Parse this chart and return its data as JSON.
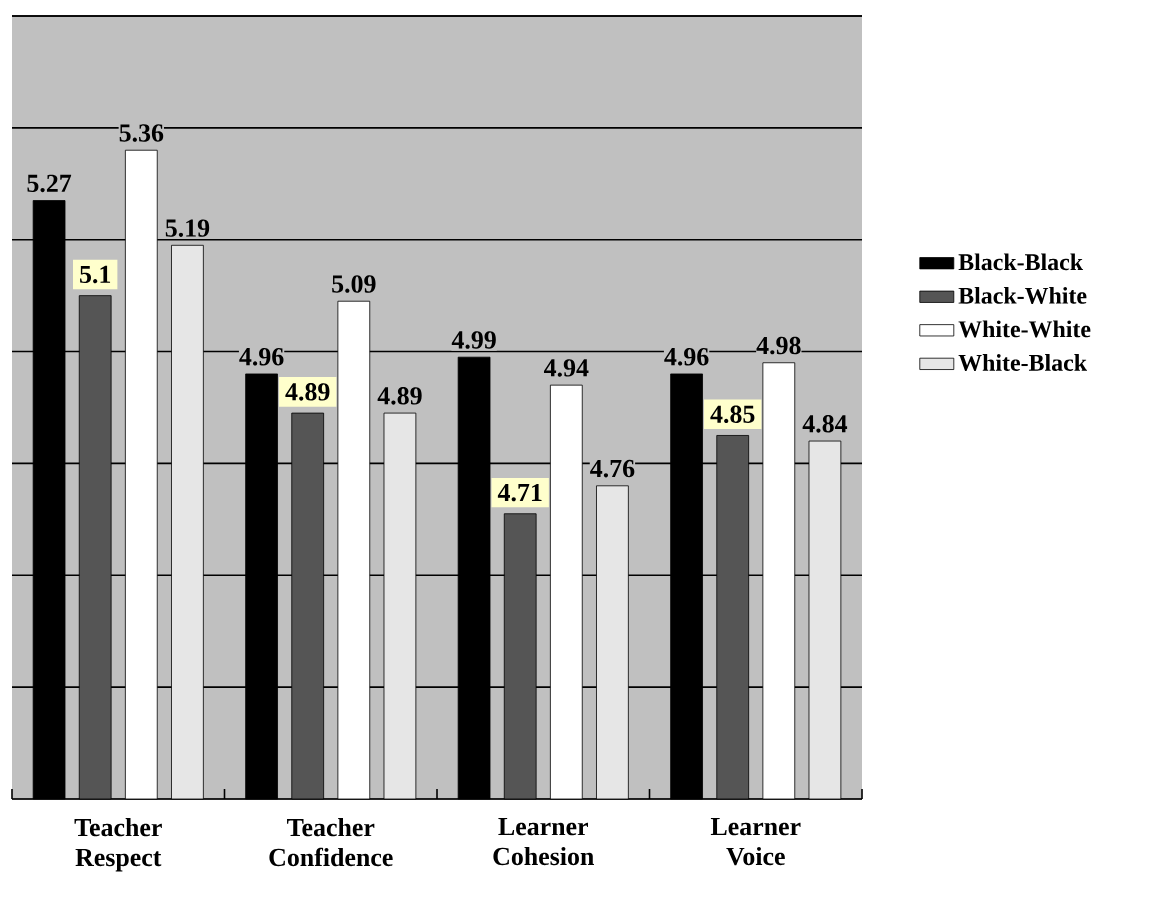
{
  "chart_data": {
    "type": "bar",
    "categories": [
      "Teacher Respect",
      "Teacher Confidence",
      "Learner Cohesion",
      "Learner Voice"
    ],
    "series": [
      {
        "name": "Black-Black",
        "color": "#000000",
        "values": [
          5.27,
          4.96,
          4.99,
          4.96
        ]
      },
      {
        "name": "Black-White",
        "color": "#555555",
        "values": [
          5.1,
          4.89,
          4.71,
          4.85
        ],
        "value_labels": [
          "5.1",
          "4.89",
          "4.71",
          "4.85"
        ]
      },
      {
        "name": "White-White",
        "color": "#ffffff",
        "values": [
          5.36,
          5.09,
          4.94,
          4.98
        ]
      },
      {
        "name": "White-Black",
        "color": "#e6e6e6",
        "values": [
          5.19,
          4.89,
          4.76,
          4.84
        ]
      }
    ],
    "data_labels": true,
    "ylim": [
      4.2,
      5.6
    ],
    "tick_labels": "x",
    "grid": "y",
    "legend": "right"
  }
}
